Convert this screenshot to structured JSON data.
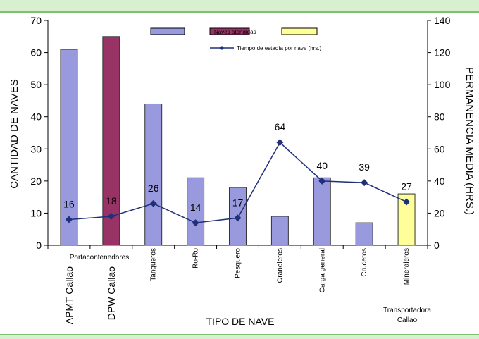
{
  "chart_data": {
    "type": "bar",
    "title": "",
    "xlabel": "TIPO DE NAVE",
    "ylabel": "CANTIDAD DE NAVES",
    "y2label": "PERMANENCIA MEDIA (HRS.)",
    "ylim": [
      0,
      70
    ],
    "y2lim": [
      0,
      140
    ],
    "yticks": [
      0,
      10,
      20,
      30,
      40,
      50,
      60,
      70
    ],
    "y2ticks": [
      0,
      20,
      40,
      60,
      80,
      100,
      120,
      140
    ],
    "grid": false,
    "legend_position": "top",
    "categories": [
      "APMT Callao",
      "DPW Callao",
      "Tanqueros",
      "Ro-Ro",
      "Pesquero",
      "Graneleros",
      "Carga general",
      "Cruceros",
      "Mineraleros"
    ],
    "group_labels": [
      "Portacontenedores",
      "Transportadora Callao"
    ],
    "series": [
      {
        "name": "Naves atendidas",
        "kind": "bar",
        "axis": "left",
        "values": [
          61,
          65,
          44,
          21,
          18,
          9,
          21,
          7,
          16
        ],
        "colors": [
          "#9999dd",
          "#993366",
          "#9999dd",
          "#9999dd",
          "#9999dd",
          "#9999dd",
          "#9999dd",
          "#9999dd",
          "#ffff99"
        ]
      },
      {
        "name": "Tiempo de estadía por nave (hrs.)",
        "kind": "line",
        "axis": "right",
        "values": [
          16,
          18,
          26,
          14,
          17,
          64,
          40,
          39,
          27
        ],
        "color": "#1f2f7a"
      }
    ],
    "legend": [
      {
        "label": "",
        "swatch": "#9999dd"
      },
      {
        "label": "Naves atendidas",
        "swatch": "#993366"
      },
      {
        "label": "",
        "swatch": "#ffff99"
      },
      {
        "label": "Tiempo de estadía por nave (hrs.)",
        "swatch": "#1f2f7a"
      }
    ],
    "colors": {
      "bar_default": "#9999dd",
      "bar_dpw": "#993366",
      "bar_minerals": "#ffff99",
      "line": "#1f2f7a",
      "bar_border": "#333333",
      "frame_band": "#d6f0d0"
    }
  }
}
